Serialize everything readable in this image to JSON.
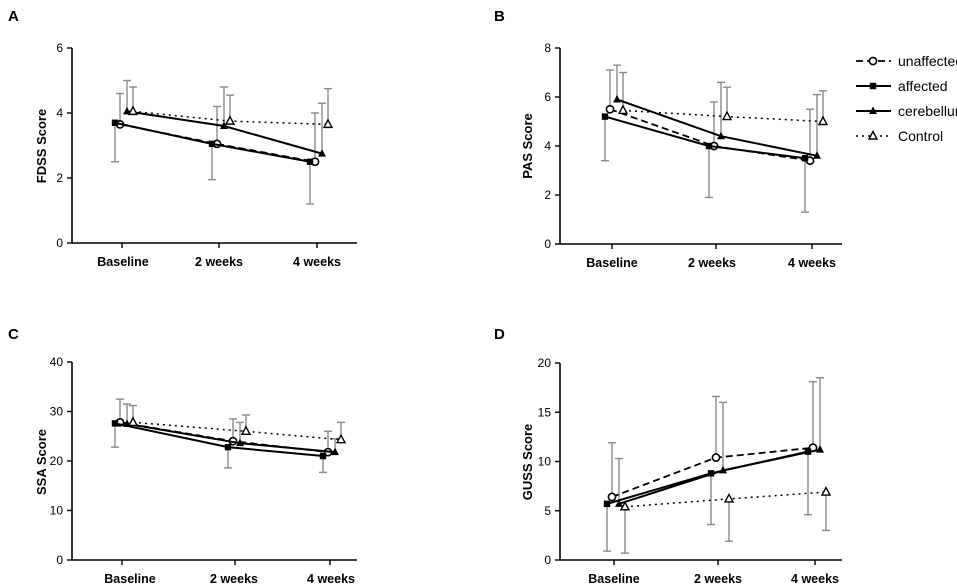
{
  "legend": {
    "entries": [
      {
        "name": "unaffected",
        "marker": "circle",
        "dash": "dashed"
      },
      {
        "name": "affected",
        "marker": "square",
        "dash": "solid"
      },
      {
        "name": "cerebellum",
        "marker": "triangle-filled",
        "dash": "solid"
      },
      {
        "name": "Control",
        "marker": "triangle-open",
        "dash": "dotted"
      }
    ]
  },
  "chart_data": [
    {
      "panel": "A",
      "type": "line",
      "categories": [
        "Baseline",
        "2 weeks",
        "4 weeks"
      ],
      "ylabel": "FDSS Score",
      "ylim": [
        0,
        6
      ],
      "yticks": [
        0,
        2,
        4,
        6
      ],
      "series": [
        {
          "name": "unaffected",
          "values": [
            3.65,
            3.05,
            2.5
          ],
          "err_high": [
            4.6,
            4.2,
            4.0
          ]
        },
        {
          "name": "affected",
          "values": [
            3.7,
            3.05,
            2.5
          ],
          "err_low": [
            2.5,
            1.95,
            1.2
          ]
        },
        {
          "name": "cerebellum",
          "values": [
            4.05,
            3.6,
            2.75
          ],
          "err_high": [
            5.0,
            4.8,
            4.3
          ]
        },
        {
          "name": "Control",
          "values": [
            4.05,
            3.75,
            3.65
          ],
          "err_high": [
            4.8,
            4.55,
            4.75
          ]
        }
      ]
    },
    {
      "panel": "B",
      "type": "line",
      "categories": [
        "Baseline",
        "2 weeks",
        "4 weeks"
      ],
      "ylabel": "PAS Score",
      "ylim": [
        0,
        8
      ],
      "yticks": [
        0,
        2,
        4,
        6,
        8
      ],
      "series": [
        {
          "name": "unaffected",
          "values": [
            5.5,
            4.0,
            3.4
          ],
          "err_high": [
            7.1,
            5.8,
            5.5
          ]
        },
        {
          "name": "affected",
          "values": [
            5.2,
            4.0,
            3.5
          ],
          "err_low": [
            3.4,
            1.9,
            1.3
          ]
        },
        {
          "name": "cerebellum",
          "values": [
            5.9,
            4.4,
            3.6
          ],
          "err_high": [
            7.3,
            6.6,
            6.1
          ]
        },
        {
          "name": "Control",
          "values": [
            5.45,
            5.2,
            5.0
          ],
          "err_high": [
            7.0,
            6.4,
            6.25
          ]
        }
      ]
    },
    {
      "panel": "C",
      "type": "line",
      "categories": [
        "Baseline",
        "2 weeks",
        "4 weeks"
      ],
      "ylabel": "SSA Score",
      "ylim": [
        0,
        40
      ],
      "yticks": [
        0,
        10,
        20,
        30,
        40
      ],
      "series": [
        {
          "name": "unaffected",
          "values": [
            27.8,
            24.0,
            21.8
          ],
          "err_high": [
            32.5,
            28.5,
            26.0
          ]
        },
        {
          "name": "affected",
          "values": [
            27.6,
            22.8,
            21.0
          ],
          "err_low": [
            22.8,
            18.6,
            17.7
          ]
        },
        {
          "name": "cerebellum",
          "values": [
            27.5,
            23.6,
            21.8
          ],
          "err_high": [
            31.5,
            27.8,
            24.5
          ]
        },
        {
          "name": "Control",
          "values": [
            27.8,
            26.0,
            24.3
          ],
          "err_high": [
            31.2,
            29.3,
            27.8
          ]
        }
      ]
    },
    {
      "panel": "D",
      "type": "line",
      "categories": [
        "Baseline",
        "2 weeks",
        "4 weeks"
      ],
      "ylabel": "GUSS Score",
      "ylim": [
        0,
        20
      ],
      "yticks": [
        0,
        5,
        10,
        15,
        20
      ],
      "series": [
        {
          "name": "unaffected",
          "values": [
            6.4,
            10.4,
            11.4
          ],
          "err_high": [
            11.9,
            16.6,
            18.1
          ]
        },
        {
          "name": "affected",
          "values": [
            5.7,
            8.8,
            11.0
          ],
          "err_low": [
            0.9,
            3.6,
            4.6
          ]
        },
        {
          "name": "cerebellum",
          "values": [
            5.7,
            9.1,
            11.2
          ],
          "err_high": [
            10.3,
            16.0,
            18.5
          ]
        },
        {
          "name": "Control",
          "values": [
            5.4,
            6.2,
            6.9
          ],
          "err_low": [
            0.7,
            1.9,
            3.0
          ]
        }
      ]
    }
  ]
}
